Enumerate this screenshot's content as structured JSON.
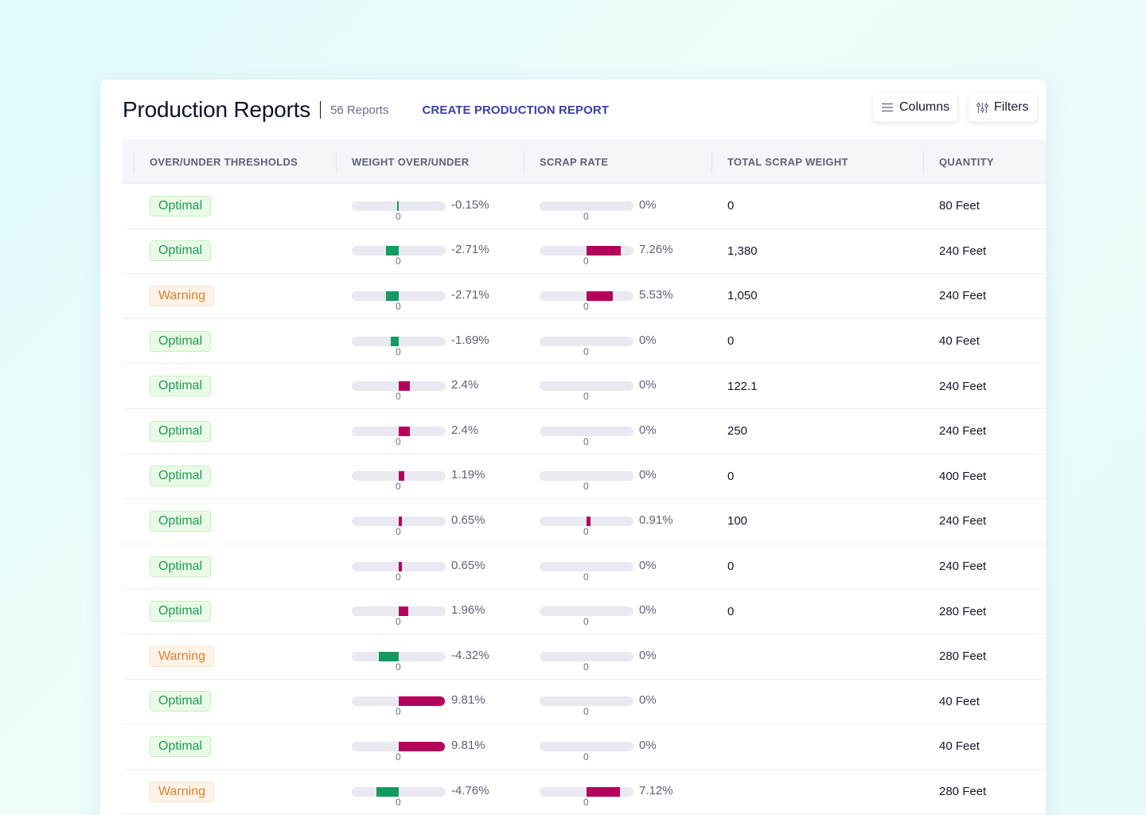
{
  "header": {
    "title": "Production Reports",
    "count": "56 Reports",
    "create_label": "CREATE PRODUCTION REPORT",
    "columns_label": "Columns",
    "filters_label": "Filters",
    "columns_icon": "menu-lines-icon",
    "filters_icon": "sliders-icon"
  },
  "colors": {
    "accent": "#3b3fa8",
    "positive_bar": "#b5005b",
    "negative_bar": "#139a63",
    "optimal": "#1e9a55",
    "warning": "#d9812a"
  },
  "columns": [
    "OVER/UNDER THRESHOLDS",
    "WEIGHT OVER/UNDER",
    "SCRAP RATE",
    "TOTAL SCRAP WEIGHT",
    "QUANTITY"
  ],
  "bar_scale_max_percent": 10,
  "zero_label": "0",
  "rows": [
    {
      "status": "Optimal",
      "weight": -0.15,
      "weight_label": "-0.15%",
      "scrap": 0,
      "scrap_label": "0%",
      "scrap_weight": "0",
      "quantity": "80 Feet"
    },
    {
      "status": "Optimal",
      "weight": -2.71,
      "weight_label": "-2.71%",
      "scrap": 7.26,
      "scrap_label": "7.26%",
      "scrap_weight": "1,380",
      "quantity": "240 Feet"
    },
    {
      "status": "Warning",
      "weight": -2.71,
      "weight_label": "-2.71%",
      "scrap": 5.53,
      "scrap_label": "5.53%",
      "scrap_weight": "1,050",
      "quantity": "240 Feet"
    },
    {
      "status": "Optimal",
      "weight": -1.69,
      "weight_label": "-1.69%",
      "scrap": 0,
      "scrap_label": "0%",
      "scrap_weight": "0",
      "quantity": "40 Feet"
    },
    {
      "status": "Optimal",
      "weight": 2.4,
      "weight_label": "2.4%",
      "scrap": 0,
      "scrap_label": "0%",
      "scrap_weight": "122.1",
      "quantity": "240 Feet"
    },
    {
      "status": "Optimal",
      "weight": 2.4,
      "weight_label": "2.4%",
      "scrap": 0,
      "scrap_label": "0%",
      "scrap_weight": "250",
      "quantity": "240 Feet"
    },
    {
      "status": "Optimal",
      "weight": 1.19,
      "weight_label": "1.19%",
      "scrap": 0,
      "scrap_label": "0%",
      "scrap_weight": "0",
      "quantity": "400 Feet"
    },
    {
      "status": "Optimal",
      "weight": 0.65,
      "weight_label": "0.65%",
      "scrap": 0.91,
      "scrap_label": "0.91%",
      "scrap_weight": "100",
      "quantity": "240 Feet"
    },
    {
      "status": "Optimal",
      "weight": 0.65,
      "weight_label": "0.65%",
      "scrap": 0,
      "scrap_label": "0%",
      "scrap_weight": "0",
      "quantity": "240 Feet"
    },
    {
      "status": "Optimal",
      "weight": 1.96,
      "weight_label": "1.96%",
      "scrap": 0,
      "scrap_label": "0%",
      "scrap_weight": "0",
      "quantity": "280 Feet"
    },
    {
      "status": "Warning",
      "weight": -4.32,
      "weight_label": "-4.32%",
      "scrap": 0,
      "scrap_label": "0%",
      "scrap_weight": "",
      "quantity": "280 Feet"
    },
    {
      "status": "Optimal",
      "weight": 9.81,
      "weight_label": "9.81%",
      "scrap": 0,
      "scrap_label": "0%",
      "scrap_weight": "",
      "quantity": "40 Feet"
    },
    {
      "status": "Optimal",
      "weight": 9.81,
      "weight_label": "9.81%",
      "scrap": 0,
      "scrap_label": "0%",
      "scrap_weight": "",
      "quantity": "40 Feet"
    },
    {
      "status": "Warning",
      "weight": -4.76,
      "weight_label": "-4.76%",
      "scrap": 7.12,
      "scrap_label": "7.12%",
      "scrap_weight": "",
      "quantity": "280 Feet"
    }
  ]
}
